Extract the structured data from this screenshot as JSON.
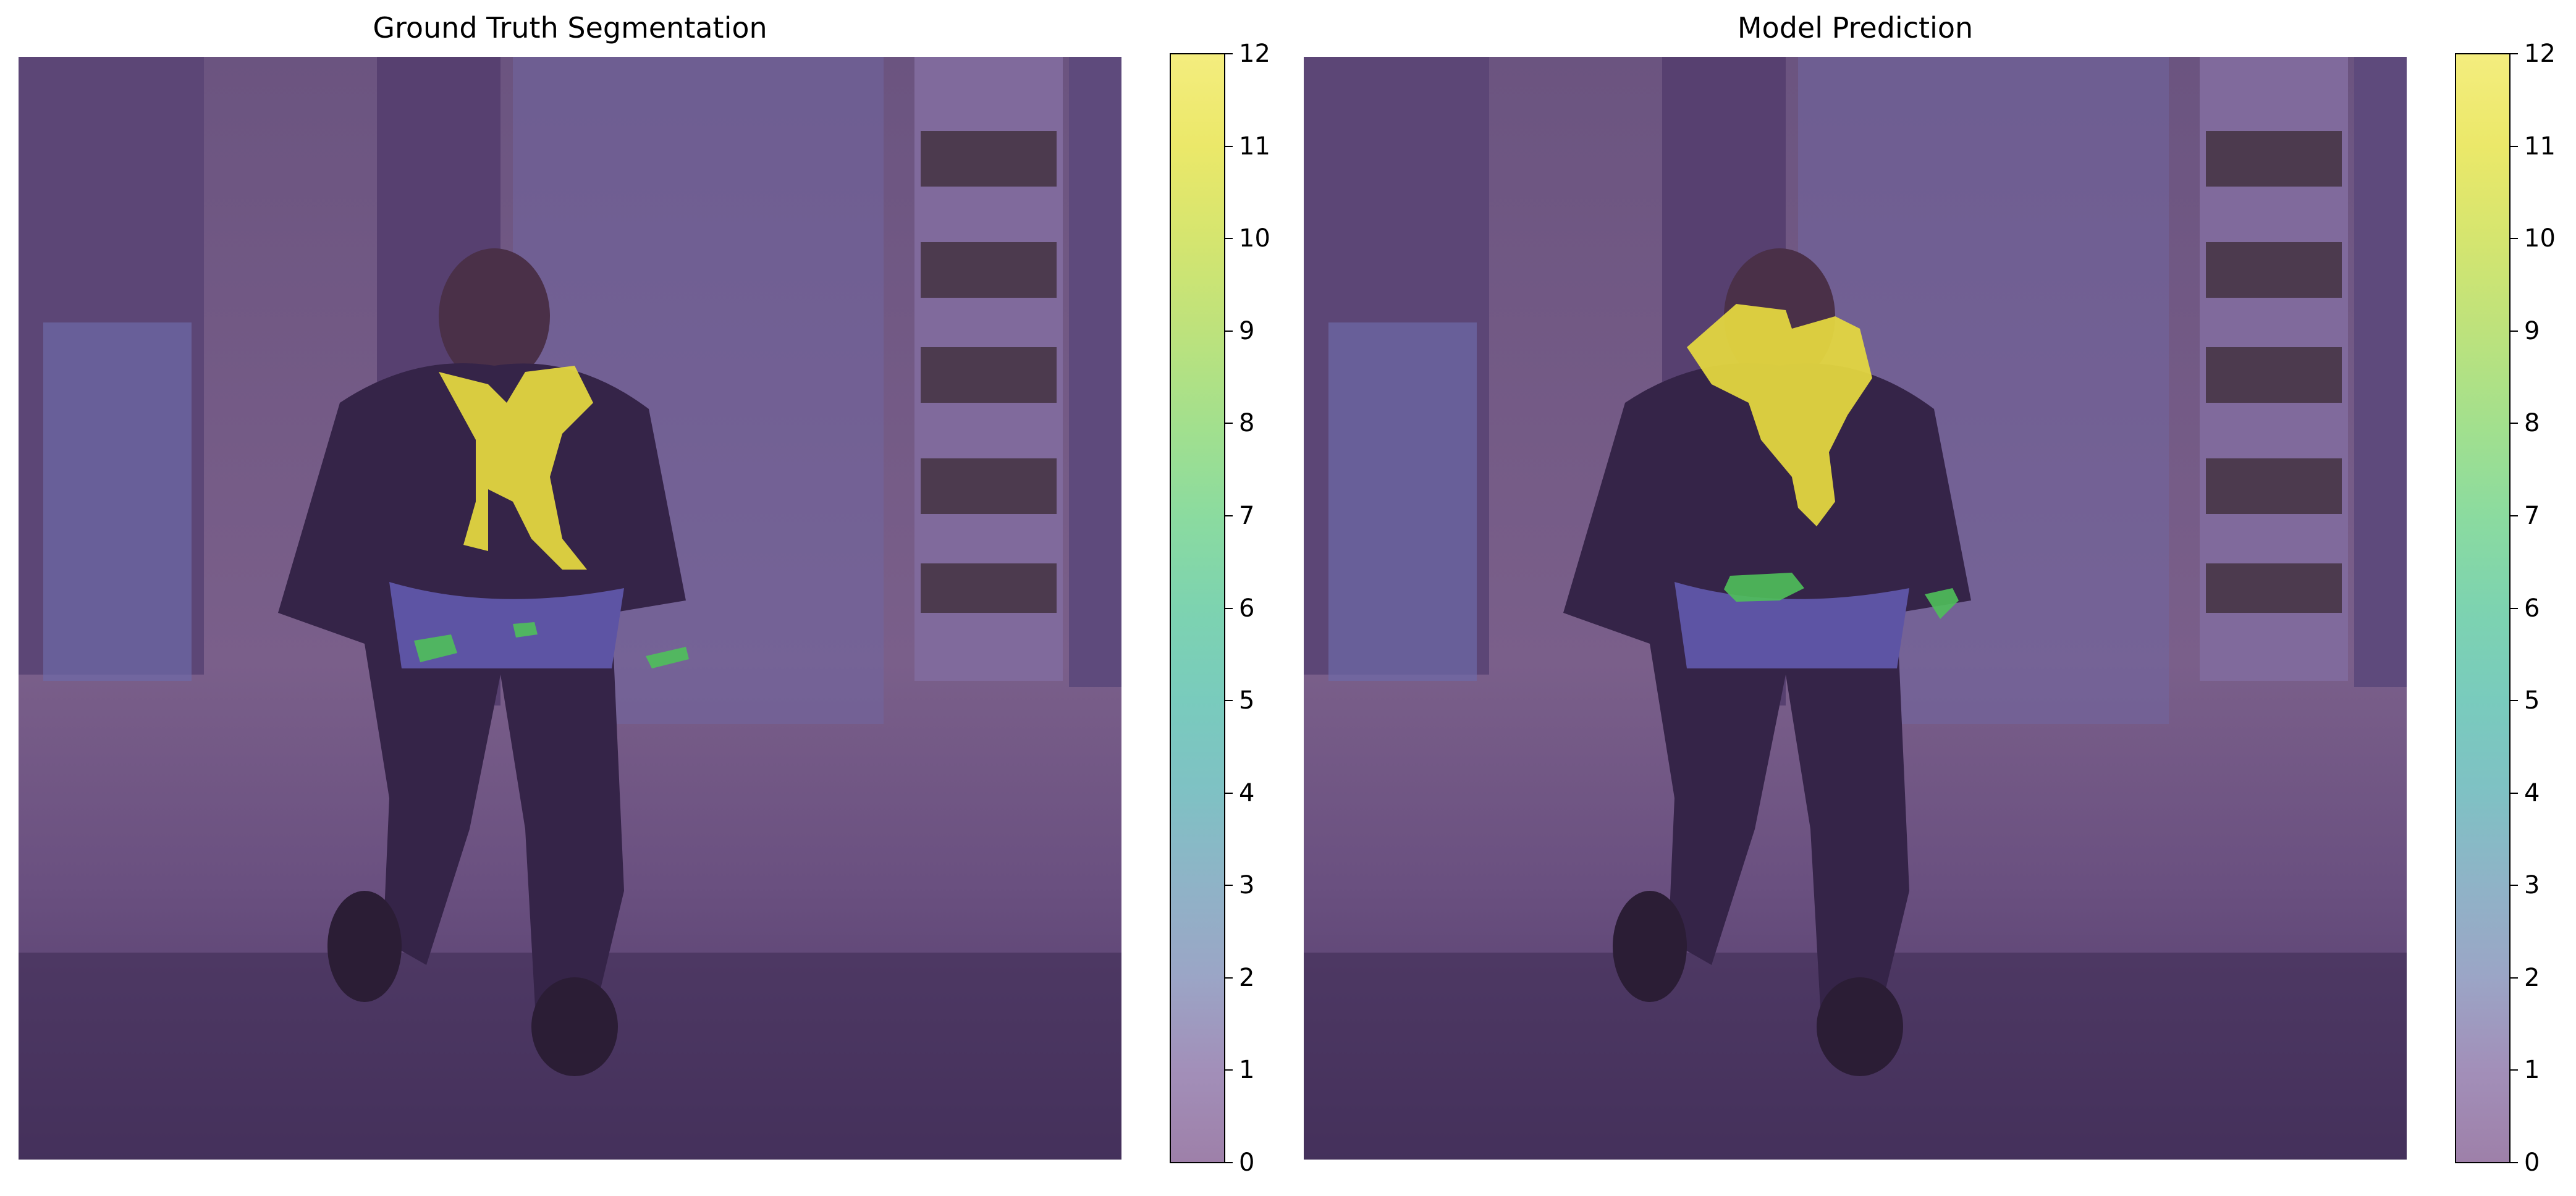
{
  "chart_data": [
    {
      "type": "heatmap",
      "title": "Ground Truth Segmentation",
      "colorbar": {
        "min": 0,
        "max": 12,
        "ticks": [
          "0",
          "1",
          "2",
          "3",
          "4",
          "5",
          "6",
          "7",
          "8",
          "9",
          "10",
          "11",
          "12"
        ],
        "colormap": "viridis",
        "alpha": 0.5
      },
      "visible_classes": [
        {
          "label": 0,
          "region": "background",
          "color": "#440154"
        },
        {
          "label": 9,
          "region": "belt",
          "color": "#4fc05a"
        },
        {
          "label": 9,
          "region": "bracelet",
          "color": "#4fc05a"
        },
        {
          "label": 12,
          "region": "scarf",
          "color": "#fde725"
        }
      ]
    },
    {
      "type": "heatmap",
      "title": "Model Prediction",
      "colorbar": {
        "min": 0,
        "max": 12,
        "ticks": [
          "0",
          "1",
          "2",
          "3",
          "4",
          "5",
          "6",
          "7",
          "8",
          "9",
          "10",
          "11",
          "12"
        ],
        "colormap": "viridis",
        "alpha": 0.5
      },
      "visible_classes": [
        {
          "label": 0,
          "region": "background",
          "color": "#440154"
        },
        {
          "label": 9,
          "region": "belt",
          "color": "#4fc05a"
        },
        {
          "label": 9,
          "region": "bracelet",
          "color": "#4fc05a"
        },
        {
          "label": 12,
          "region": "scarf",
          "color": "#fde725"
        }
      ]
    }
  ]
}
